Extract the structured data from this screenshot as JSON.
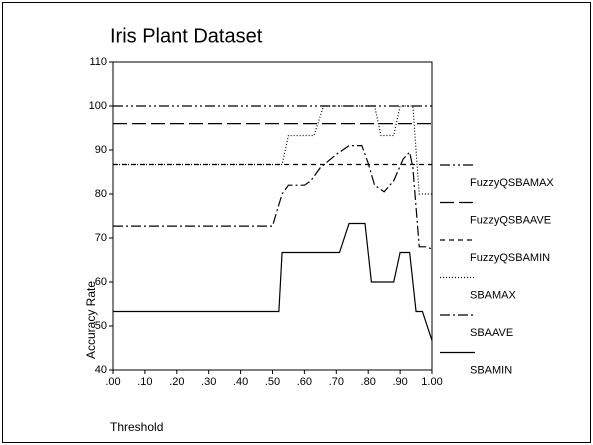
{
  "chart_data": {
    "type": "line",
    "title": "Iris Plant Dataset",
    "x_label": "Threshold",
    "y_label": "Accuracy Rate",
    "xlim": [
      0,
      1
    ],
    "xticks": [
      {
        "value": 0,
        "label": ".00"
      },
      {
        "value": 0.1,
        "label": ".10"
      },
      {
        "value": 0.2,
        "label": ".20"
      },
      {
        "value": 0.3,
        "label": ".30"
      },
      {
        "value": 0.4,
        "label": ".40"
      },
      {
        "value": 0.5,
        "label": ".50"
      },
      {
        "value": 0.6,
        "label": ".60"
      },
      {
        "value": 0.7,
        "label": ".70"
      },
      {
        "value": 0.8,
        "label": ".80"
      },
      {
        "value": 0.9,
        "label": ".90"
      },
      {
        "value": 1,
        "label": "1.00"
      }
    ],
    "ylim": [
      40,
      110
    ],
    "yticks": [
      40,
      50,
      60,
      70,
      80,
      90,
      100,
      110
    ],
    "legend": "right",
    "series": [
      {
        "name": "FuzzyQSBAMAX",
        "color": "#000000",
        "dash": "dash-dot-dot",
        "x": [
          0,
          1
        ],
        "values": [
          100,
          100
        ]
      },
      {
        "name": "FuzzyQSBAAVE",
        "color": "#000000",
        "dash": "long-dash",
        "x": [
          0,
          1
        ],
        "values": [
          96,
          96
        ]
      },
      {
        "name": "FuzzyQSBAMIN",
        "color": "#000000",
        "dash": "short-dash",
        "x": [
          0,
          1
        ],
        "values": [
          86.7,
          86.7
        ]
      },
      {
        "name": "SBAMAX",
        "color": "#000000",
        "dash": "dotted",
        "x": [
          0,
          0.53,
          0.55,
          0.63,
          0.66,
          0.82,
          0.84,
          0.88,
          0.9,
          0.94,
          0.96,
          1
        ],
        "values": [
          86.7,
          86.7,
          93.3,
          93.3,
          100,
          100,
          93.3,
          93.3,
          100,
          100,
          80,
          80
        ]
      },
      {
        "name": "SBAAVE",
        "color": "#000000",
        "dash": "dash-dot",
        "x": [
          0,
          0.5,
          0.53,
          0.55,
          0.6,
          0.62,
          0.65,
          0.7,
          0.74,
          0.78,
          0.8,
          0.82,
          0.85,
          0.88,
          0.91,
          0.93,
          0.94,
          0.96,
          0.98,
          1
        ],
        "values": [
          72.7,
          72.7,
          80,
          82,
          82,
          83,
          86,
          89,
          91,
          91,
          87,
          82,
          80.5,
          83,
          88,
          89.5,
          86,
          68,
          68,
          67.5
        ]
      },
      {
        "name": "SBAMIN",
        "color": "#000000",
        "dash": "solid",
        "x": [
          0,
          0.52,
          0.53,
          0.71,
          0.74,
          0.79,
          0.81,
          0.88,
          0.9,
          0.93,
          0.95,
          0.97,
          1
        ],
        "values": [
          53.3,
          53.3,
          66.7,
          66.7,
          73.3,
          73.3,
          60,
          60,
          66.7,
          66.7,
          53.3,
          53.3,
          46.7
        ]
      }
    ]
  }
}
